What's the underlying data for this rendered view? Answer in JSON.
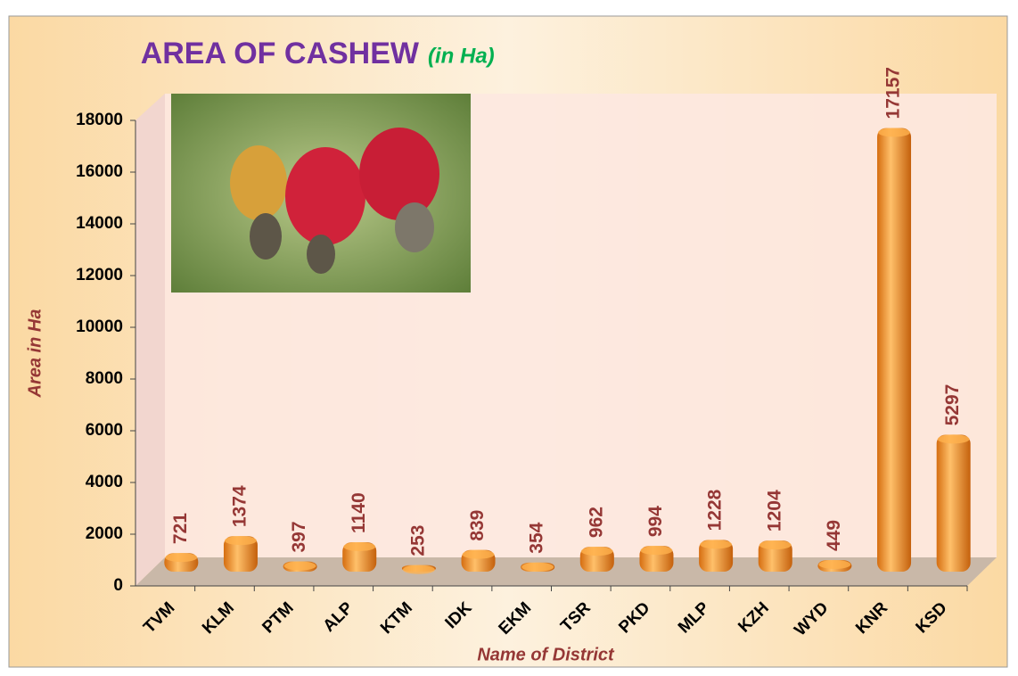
{
  "chart_data": {
    "type": "bar",
    "title": "AREA OF CASHEW",
    "subtitle": "(in Ha)",
    "x_label": "Name of District",
    "y_label": "Area in Ha",
    "categories": [
      "TVM",
      "KLM",
      "PTM",
      "ALP",
      "KTM",
      "IDK",
      "EKM",
      "TSR",
      "PKD",
      "MLP",
      "KZH",
      "WYD",
      "KNR",
      "KSD"
    ],
    "values": [
      721,
      1374,
      397,
      1140,
      253,
      839,
      354,
      962,
      994,
      1228,
      1204,
      449,
      17157,
      5297
    ],
    "color": "#f39a2e",
    "ylim": [
      0,
      18000
    ],
    "yticks": [
      0,
      2000,
      4000,
      6000,
      8000,
      10000,
      12000,
      14000,
      16000,
      18000
    ],
    "grid": false
  }
}
